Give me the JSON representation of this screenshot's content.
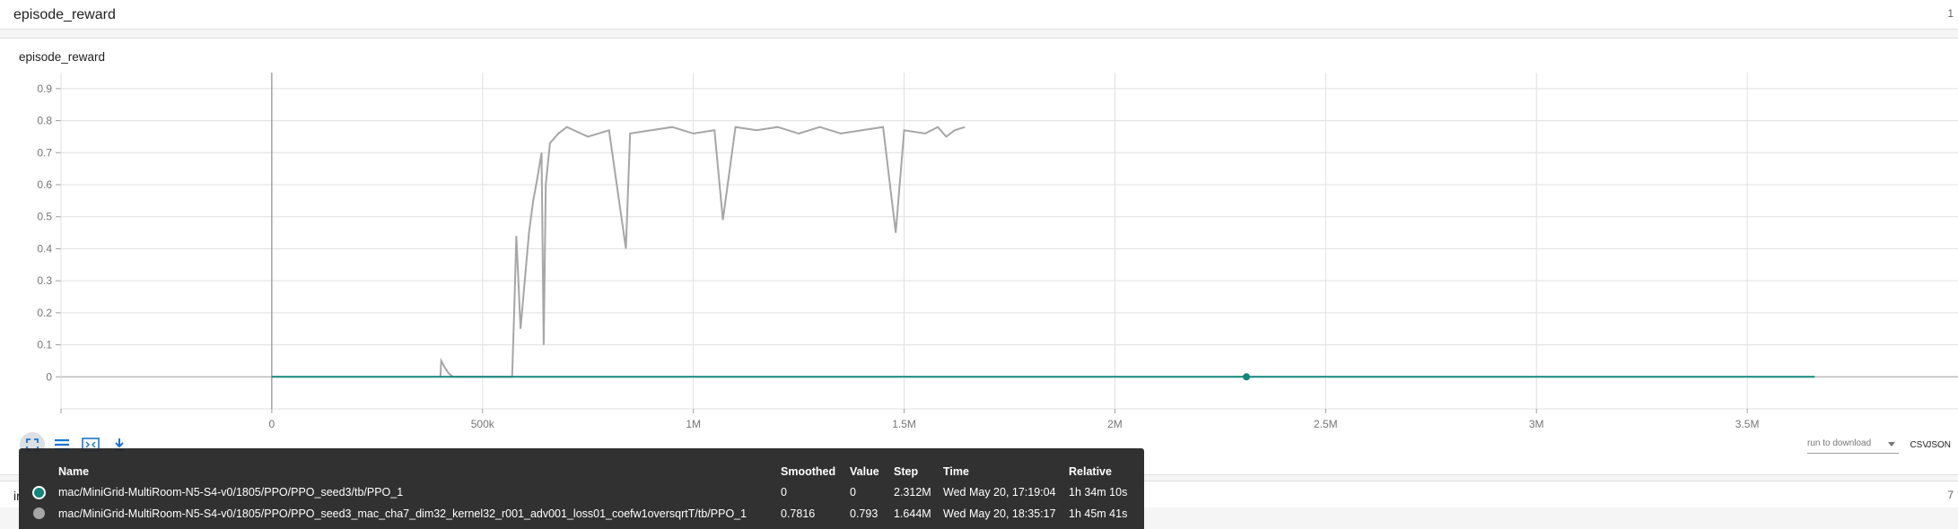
{
  "section": {
    "title": "episode_reward",
    "count": "1"
  },
  "card": {
    "title": "episode_reward"
  },
  "chart_data": {
    "type": "line",
    "title": "episode_reward",
    "xlabel": "",
    "ylabel": "",
    "x_ticks": [
      "0",
      "500k",
      "1M",
      "1.5M",
      "2M",
      "2.5M",
      "3M",
      "3.5M"
    ],
    "y_ticks": [
      "0",
      "0.1",
      "0.2",
      "0.3",
      "0.4",
      "0.5",
      "0.6",
      "0.7",
      "0.8",
      "0.9"
    ],
    "xlim": [
      -500000,
      4000000
    ],
    "ylim": [
      -0.1,
      0.95
    ],
    "grid": true,
    "series": [
      {
        "name": "mac/MiniGrid-MultiRoom-N5-S4-v0/1805/PPO/PPO_seed3/tb/PPO_1",
        "color": "#12877b",
        "x": [
          0,
          500000,
          1000000,
          1500000,
          2000000,
          2312000,
          2500000,
          3000000,
          3500000,
          3660000
        ],
        "y": [
          0,
          0,
          0,
          0,
          0,
          0,
          0,
          0,
          0,
          0
        ],
        "highlight": {
          "x": 2312000,
          "y": 0
        }
      },
      {
        "name": "mac/MiniGrid-MultiRoom-N5-S4-v0/1805/PPO/PPO_seed3_mac_cha7_dim32_kernel32_r001_adv001_loss01_coefw1oversqrtT/tb/PPO_1",
        "color": "#a6a6a6",
        "x": [
          400000,
          402000,
          410000,
          420000,
          430000,
          570000,
          575000,
          580000,
          585000,
          590000,
          600000,
          610000,
          620000,
          630000,
          640000,
          645000,
          650000,
          660000,
          680000,
          700000,
          750000,
          800000,
          840000,
          850000,
          900000,
          950000,
          1000000,
          1050000,
          1070000,
          1100000,
          1150000,
          1200000,
          1250000,
          1300000,
          1350000,
          1400000,
          1450000,
          1480000,
          1500000,
          1550000,
          1580000,
          1600000,
          1620000,
          1644000
        ],
        "y": [
          0.0,
          0.05,
          0.03,
          0.01,
          0.0,
          0.0,
          0.2,
          0.44,
          0.3,
          0.15,
          0.3,
          0.45,
          0.55,
          0.62,
          0.7,
          0.1,
          0.6,
          0.73,
          0.76,
          0.78,
          0.75,
          0.77,
          0.4,
          0.76,
          0.77,
          0.78,
          0.76,
          0.77,
          0.49,
          0.78,
          0.77,
          0.78,
          0.76,
          0.78,
          0.76,
          0.77,
          0.78,
          0.45,
          0.77,
          0.76,
          0.78,
          0.75,
          0.77,
          0.78
        ]
      }
    ]
  },
  "toolbar": {
    "icons": [
      "fullscreen-icon",
      "data-list-icon",
      "fit-domain-icon",
      "download-icon"
    ]
  },
  "download": {
    "placeholder": "run to download",
    "csv_label": "CSV",
    "json_label": "JSON"
  },
  "lower_section": {
    "title": "ir",
    "count": "7"
  },
  "tooltip": {
    "headers": {
      "name": "Name",
      "smoothed": "Smoothed",
      "value": "Value",
      "step": "Step",
      "time": "Time",
      "relative": "Relative"
    },
    "rows": [
      {
        "name": "mac/MiniGrid-MultiRoom-N5-S4-v0/1805/PPO/PPO_seed3/tb/PPO_1",
        "smoothed": "0",
        "value": "0",
        "step": "2.312M",
        "time": "Wed May 20, 17:19:04",
        "relative": "1h 34m 10s",
        "color": "#12877b"
      },
      {
        "name": "mac/MiniGrid-MultiRoom-N5-S4-v0/1805/PPO/PPO_seed3_mac_cha7_dim32_kernel32_r001_adv001_loss01_coefw1oversqrtT/tb/PPO_1",
        "smoothed": "0.7816",
        "value": "0.793",
        "step": "1.644M",
        "time": "Wed May 20, 18:35:17",
        "relative": "1h 45m 41s",
        "color": "#a6a6a6"
      }
    ]
  }
}
